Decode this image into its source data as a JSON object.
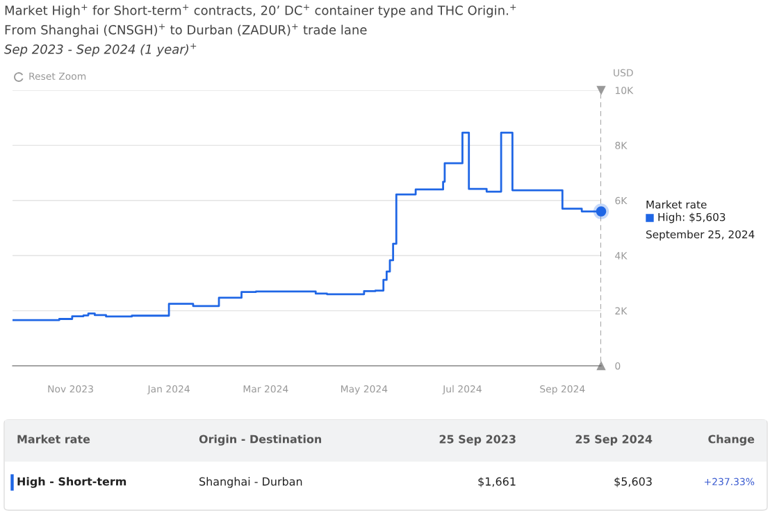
{
  "chart_data": {
    "type": "step",
    "title": "Market High$^{+}$ for Short-term$^{+}$ contracts, 20’ DC$^{+}$ container type and THC Origin.$^{+}$",
    "subtitle": "From Shanghai (CNSGH)$^{+}$ to Durban (ZADUR)$^{+}$ trade lane",
    "ylabel": "USD",
    "x": [
      "2023-09-26",
      "2023-10-25",
      "2023-11-02",
      "2023-11-09",
      "2023-11-12",
      "2023-11-16",
      "2023-11-23",
      "2023-12-09",
      "2024-01-01",
      "2024-01-16",
      "2024-02-01",
      "2024-02-15",
      "2024-02-24",
      "2024-04-01",
      "2024-04-08",
      "2024-05-01",
      "2024-05-08",
      "2024-05-13",
      "2024-05-15",
      "2024-05-17",
      "2024-05-19",
      "2024-05-21",
      "2024-06-02",
      "2024-06-19",
      "2024-06-20",
      "2024-07-01",
      "2024-07-05",
      "2024-07-16",
      "2024-07-25",
      "2024-08-01",
      "2024-09-01",
      "2024-09-13",
      "2024-09-25"
    ],
    "series": [
      {
        "color": "#1f66e5",
        "values": [
          1661,
          1700,
          1800,
          1830,
          1900,
          1840,
          1790,
          1820,
          2250,
          2170,
          2470,
          2680,
          2700,
          2620,
          2600,
          2710,
          2730,
          3120,
          3420,
          3830,
          4430,
          6220,
          6400,
          6680,
          7350,
          8460,
          6420,
          6320,
          8460,
          6370,
          5700,
          5603,
          5603
        ]
      }
    ],
    "xlim": [
      "2023-09-26",
      "2024-09-25"
    ],
    "xticks": [
      {
        "value": "2023-11-01",
        "label": "Nov 2023"
      },
      {
        "value": "2024-01-01",
        "label": "Jan 2024"
      },
      {
        "value": "2024-03-01",
        "label": "Mar 2024"
      },
      {
        "value": "2024-05-01",
        "label": "May 2024"
      },
      {
        "value": "2024-07-01",
        "label": "Jul 2024"
      },
      {
        "value": "2024-09-01",
        "label": "Sep 2024"
      }
    ],
    "ylim": [
      0,
      10000
    ],
    "yticks": [
      0,
      {
        "value": 2000,
        "label": "2K"
      },
      {
        "value": 4000,
        "label": "4K"
      },
      {
        "value": 6000,
        "label": "6K"
      },
      {
        "value": 8000,
        "label": "8K"
      },
      {
        "value": 10000,
        "label": "10K"
      }
    ],
    "grid": "y",
    "ref_lines": [
      {
        "axis": "x",
        "value": "2024-09-25",
        "color": "#999999",
        "line_style": "dashed"
      }
    ],
    "annotations": [
      "Sep 2023 - Sep 2024 (1 year)$^{+}$",
      "Reset Zoom",
      "Market rate\nHigh: $5,603\nSeptember 25, 2024",
      "Market rate",
      "Origin - Destination",
      "25 Sep 2023",
      "25 Sep 2024",
      "Change",
      "High - Short-term",
      "Shanghai - Durban",
      "$1,661",
      "$5,603",
      "+237.33%"
    ]
  }
}
